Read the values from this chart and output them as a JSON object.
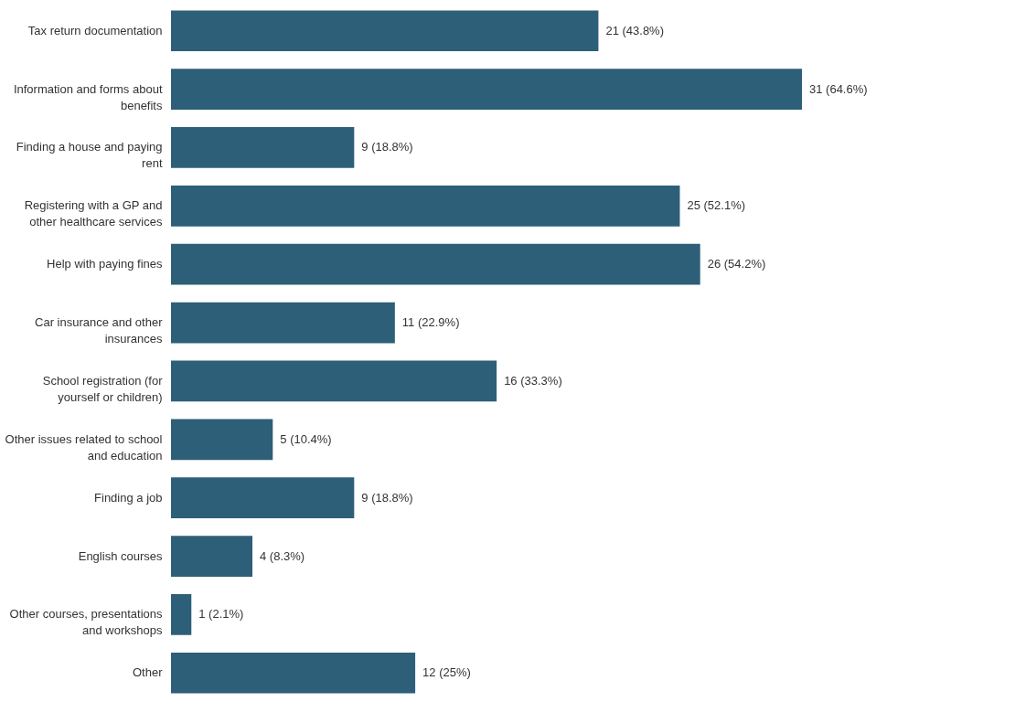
{
  "chart_data": {
    "type": "bar",
    "orientation": "horizontal",
    "categories": [
      "Tax return documentation",
      "Information and forms about benefits",
      "Finding a house and paying rent",
      "Registering with a GP and other healthcare services",
      "Help with paying fines",
      "Car insurance and other insurances",
      "School registration (for yourself or children)",
      "Other issues related to school and education",
      "Finding a job",
      "English courses",
      "Other courses, presentations and workshops",
      "Other"
    ],
    "values": [
      21,
      31,
      9,
      25,
      26,
      11,
      16,
      5,
      9,
      4,
      1,
      12
    ],
    "value_labels": [
      "21 (43.8%)",
      "31 (64.6%)",
      "9 (18.8%)",
      "25 (52.1%)",
      "26 (54.2%)",
      "11 (22.9%)",
      "16 (33.3%)",
      "5 (10.4%)",
      "9 (18.8%)",
      "4 (8.3%)",
      "1 (2.1%)",
      "12 (25%)"
    ],
    "color": "#2d5f78"
  }
}
